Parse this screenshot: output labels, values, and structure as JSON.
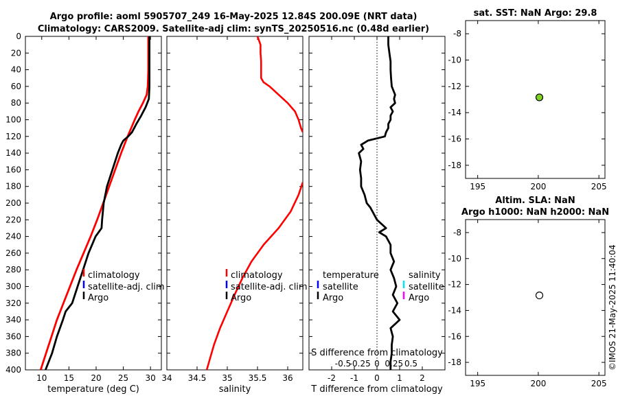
{
  "titles": {
    "line1": "Argo profile: aoml 5905707_249 16-May-2025 12.84S 200.09E (NRT data)",
    "line2": "Climatology: CARS2009. Satellite-adj clim: synTS_20250516.nc (0.48d earlier)"
  },
  "timestamp": "©IMOS 21-May-2025 11:40:04",
  "colors": {
    "climatology": "#ff0000",
    "satellite": "#0000ff",
    "argo": "#000000",
    "sal_satellite": "#00e5ee",
    "sal_argo": "#ff00ff",
    "sst_marker": "#7ed321"
  },
  "chart_data": [
    {
      "name": "temperature",
      "type": "line",
      "xlabel": "temperature (deg C)",
      "ylabel": "depth",
      "xlim": [
        7,
        32
      ],
      "ylim": [
        0,
        400
      ],
      "xticks": [
        10,
        15,
        20,
        25,
        30
      ],
      "yticks": [
        0,
        20,
        40,
        60,
        80,
        100,
        120,
        140,
        160,
        180,
        200,
        220,
        240,
        260,
        280,
        300,
        320,
        340,
        360,
        380,
        400
      ],
      "legend": [
        "climatology",
        "satellite-adj. clim",
        "Argo"
      ],
      "series": [
        {
          "name": "climatology",
          "color": "#ff0000",
          "depth": [
            0,
            20,
            40,
            60,
            70,
            80,
            90,
            100,
            120,
            140,
            160,
            180,
            200,
            220,
            240,
            260,
            280,
            300,
            320,
            340,
            360,
            380,
            400
          ],
          "values": [
            29.6,
            29.6,
            29.6,
            29.5,
            29.3,
            28.6,
            27.8,
            27.1,
            25.8,
            24.6,
            23.5,
            22.4,
            21.3,
            20.2,
            19.0,
            17.7,
            16.4,
            15.2,
            14.0,
            12.8,
            11.8,
            10.8,
            9.8
          ]
        },
        {
          "name": "Argo",
          "color": "#000000",
          "depth": [
            0,
            20,
            40,
            60,
            75,
            85,
            95,
            105,
            115,
            120,
            125,
            130,
            140,
            160,
            180,
            200,
            220,
            230,
            240,
            260,
            280,
            300,
            320,
            330,
            340,
            360,
            380,
            400
          ],
          "values": [
            29.8,
            29.8,
            29.8,
            29.8,
            29.7,
            29.1,
            28.3,
            27.4,
            26.6,
            25.9,
            25.0,
            24.6,
            24.0,
            23.0,
            22.0,
            21.4,
            21.1,
            21.0,
            19.9,
            18.6,
            17.6,
            16.6,
            15.6,
            14.4,
            13.9,
            12.8,
            11.9,
            10.7
          ]
        }
      ]
    },
    {
      "name": "salinity",
      "type": "line",
      "xlabel": "salinity",
      "xlim": [
        34,
        36.25
      ],
      "ylim": [
        0,
        400
      ],
      "xticks": [
        34,
        34.5,
        35,
        35.5,
        36
      ],
      "legend": [
        "climatology",
        "satellite-adj. clim",
        "Argo"
      ],
      "series": [
        {
          "name": "climatology",
          "color": "#ff0000",
          "depth": [
            0,
            10,
            20,
            30,
            40,
            50,
            55,
            60,
            70,
            80,
            90,
            100,
            110,
            115
          ],
          "values": [
            35.5,
            35.55,
            35.55,
            35.56,
            35.56,
            35.56,
            35.6,
            35.7,
            35.85,
            36.0,
            36.12,
            36.18,
            36.22,
            36.25
          ]
        },
        {
          "name": "climatology-deep",
          "color": "#ff0000",
          "depth": [
            175,
            190,
            210,
            230,
            250,
            270,
            290,
            310,
            330,
            350,
            370,
            390,
            400
          ],
          "values": [
            36.25,
            36.18,
            36.05,
            35.85,
            35.6,
            35.4,
            35.25,
            35.12,
            35.0,
            34.88,
            34.78,
            34.7,
            34.66
          ]
        }
      ]
    },
    {
      "name": "T difference",
      "type": "line",
      "xlabel": "T difference from climatology",
      "xlabel_top": "S difference from climatology",
      "xlim": [
        -3,
        3
      ],
      "ylim": [
        0,
        400
      ],
      "xticks": [
        -2,
        -1,
        0,
        1,
        2
      ],
      "xticks_top": [
        "-0.5",
        "-0.25",
        "0",
        "0.25",
        "0.5"
      ],
      "legend_left_title": "temperature",
      "legend_left": [
        "satellite",
        "Argo"
      ],
      "legend_right_title": "salinity",
      "legend_right": [
        "satellite",
        "Argo"
      ],
      "series": [
        {
          "name": "Argo",
          "color": "#000000",
          "depth": [
            0,
            10,
            20,
            30,
            40,
            50,
            60,
            70,
            75,
            80,
            85,
            90,
            95,
            100,
            105,
            110,
            115,
            120,
            125,
            130,
            135,
            140,
            150,
            160,
            170,
            180,
            190,
            200,
            205,
            210,
            215,
            220,
            225,
            230,
            235,
            240,
            250,
            260,
            270,
            280,
            290,
            300,
            310,
            320,
            330,
            340,
            350,
            360,
            370,
            380,
            390,
            400
          ],
          "values": [
            0.5,
            0.5,
            0.55,
            0.6,
            0.6,
            0.62,
            0.65,
            0.8,
            0.75,
            0.8,
            0.6,
            0.7,
            0.6,
            0.6,
            0.5,
            0.5,
            0.4,
            0.35,
            -0.4,
            -0.7,
            -0.6,
            -0.8,
            -0.7,
            -0.75,
            -0.7,
            -0.7,
            -0.55,
            -0.45,
            -0.3,
            -0.2,
            -0.1,
            0.0,
            0.2,
            0.4,
            0.1,
            0.4,
            0.6,
            0.6,
            0.75,
            0.6,
            0.75,
            0.85,
            0.7,
            0.9,
            0.7,
            1.0,
            0.6,
            0.7,
            0.65,
            0.65,
            0.6,
            0.6
          ]
        }
      ]
    },
    {
      "name": "sat. SST",
      "type": "scatter",
      "title": "sat. SST: NaN Argo: 29.8",
      "xlim": [
        194,
        205.5
      ],
      "ylim": [
        -19,
        -7
      ],
      "xticks": [
        195,
        200,
        205
      ],
      "yticks": [
        -8,
        -10,
        -12,
        -14,
        -16,
        -18
      ],
      "points": [
        {
          "x": 200.09,
          "y": -12.84,
          "fill": "#7ed321"
        }
      ]
    },
    {
      "name": "Altim. SLA",
      "type": "scatter",
      "title_line1": "Altim. SLA: NaN",
      "title_line2": "Argo h1000: NaN h2000: NaN",
      "xlim": [
        194,
        205.5
      ],
      "ylim": [
        -19,
        -7
      ],
      "xticks": [
        195,
        200,
        205
      ],
      "yticks": [
        -8,
        -10,
        -12,
        -14,
        -16,
        -18
      ],
      "points": [
        {
          "x": 200.09,
          "y": -12.84,
          "fill": "#ffffff"
        }
      ]
    }
  ]
}
